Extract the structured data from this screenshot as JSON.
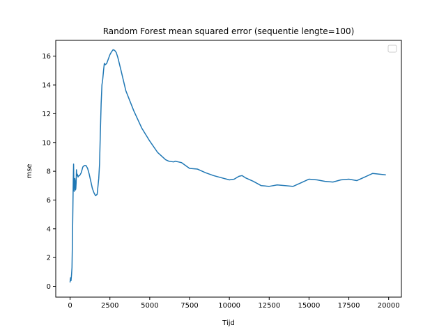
{
  "chart_data": {
    "type": "line",
    "title": "Random Forest mean squared error (sequentie lengte=100)",
    "xlabel": "Tijd",
    "ylabel": "mse",
    "xlim": [
      -900,
      20800
    ],
    "ylim": [
      -0.75,
      17.1
    ],
    "xticks": [
      0,
      2500,
      5000,
      7500,
      10000,
      12500,
      15000,
      17500,
      20000
    ],
    "xtick_labels": [
      "0",
      "2500",
      "5000",
      "7500",
      "10000",
      "12500",
      "15000",
      "17500",
      "20000"
    ],
    "yticks": [
      0,
      2,
      4,
      6,
      8,
      10,
      12,
      14,
      16
    ],
    "ytick_labels": [
      "0",
      "2",
      "4",
      "6",
      "8",
      "10",
      "12",
      "14",
      "16"
    ],
    "grid": false,
    "legend": {
      "placement": "top-right",
      "entries": []
    },
    "series": [
      {
        "color": "#1f77b4",
        "x": [
          0,
          30,
          60,
          90,
          120,
          150,
          180,
          200,
          220,
          240,
          260,
          280,
          300,
          320,
          340,
          360,
          380,
          400,
          420,
          450,
          500,
          550,
          600,
          700,
          800,
          900,
          1000,
          1100,
          1200,
          1300,
          1400,
          1500,
          1600,
          1700,
          1800,
          1850,
          1900,
          1950,
          2000,
          2050,
          2100,
          2150,
          2200,
          2300,
          2400,
          2500,
          2600,
          2700,
          2800,
          2900,
          3000,
          3200,
          3500,
          4000,
          4500,
          5000,
          5500,
          6000,
          6200,
          6500,
          6600,
          6800,
          7000,
          7500,
          8000,
          8500,
          9000,
          9500,
          10000,
          10300,
          10600,
          10800,
          11000,
          11500,
          12000,
          12500,
          13000,
          13500,
          14000,
          14500,
          15000,
          15500,
          16000,
          16500,
          17000,
          17500,
          18000,
          18500,
          19000,
          19400,
          19800
        ],
        "y": [
          0.3,
          0.6,
          0.4,
          0.8,
          1.3,
          3.3,
          5.8,
          7.4,
          8.5,
          7.0,
          6.6,
          7.2,
          7.5,
          7.3,
          6.7,
          6.8,
          7.2,
          8.1,
          7.7,
          7.8,
          7.6,
          7.7,
          7.7,
          7.9,
          8.3,
          8.4,
          8.4,
          8.2,
          7.8,
          7.3,
          6.8,
          6.5,
          6.3,
          6.4,
          7.5,
          8.5,
          10.7,
          12.7,
          14.0,
          14.4,
          15.0,
          15.5,
          15.4,
          15.5,
          15.8,
          16.1,
          16.3,
          16.45,
          16.4,
          16.25,
          15.9,
          15.0,
          13.6,
          12.2,
          11.0,
          10.1,
          9.3,
          8.8,
          8.7,
          8.65,
          8.7,
          8.65,
          8.6,
          8.2,
          8.15,
          7.9,
          7.7,
          7.55,
          7.4,
          7.45,
          7.65,
          7.7,
          7.55,
          7.3,
          7.0,
          6.95,
          7.05,
          7.0,
          6.95,
          7.2,
          7.45,
          7.4,
          7.3,
          7.25,
          7.4,
          7.45,
          7.35,
          7.6,
          7.85,
          7.8,
          7.75
        ]
      }
    ]
  }
}
